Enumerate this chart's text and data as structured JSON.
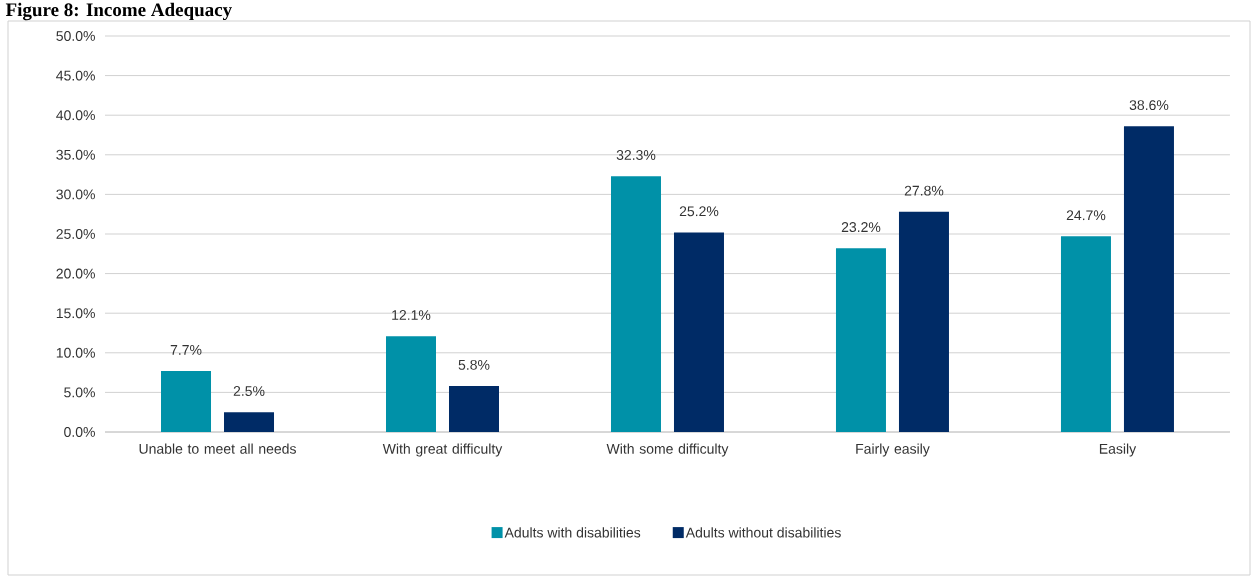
{
  "chart_data": {
    "type": "bar",
    "title": "Figure 8: Income Adequacy",
    "categories": [
      "Unable to meet all needs",
      "With great difficulty",
      "With some difficulty",
      "Fairly easily",
      "Easily"
    ],
    "series": [
      {
        "name": "Adults with disabilities",
        "color": "#0091a8",
        "values": [
          7.7,
          12.1,
          32.3,
          23.2,
          24.7
        ],
        "value_labels": [
          "7.7%",
          "12.1%",
          "32.3%",
          "23.2%",
          "24.7%"
        ]
      },
      {
        "name": "Adults without disabilities",
        "color": "#002b66",
        "values": [
          2.5,
          5.8,
          25.2,
          27.8,
          38.6
        ],
        "value_labels": [
          "2.5%",
          "5.8%",
          "25.2%",
          "27.8%",
          "38.6%"
        ]
      }
    ],
    "ylim": [
      0,
      50
    ],
    "yticks": [
      {
        "value": 0,
        "label": "0.0%"
      },
      {
        "value": 5,
        "label": "5.0%"
      },
      {
        "value": 10,
        "label": "10.0%"
      },
      {
        "value": 15,
        "label": "15.0%"
      },
      {
        "value": 20,
        "label": "20.0%"
      },
      {
        "value": 25,
        "label": "25.0%"
      },
      {
        "value": 30,
        "label": "30.0%"
      },
      {
        "value": 35,
        "label": "35.0%"
      },
      {
        "value": 40,
        "label": "40.0%"
      },
      {
        "value": 45,
        "label": "45.0%"
      },
      {
        "value": 50,
        "label": "50.0%"
      }
    ],
    "grid": "y",
    "legend": "bottom"
  }
}
